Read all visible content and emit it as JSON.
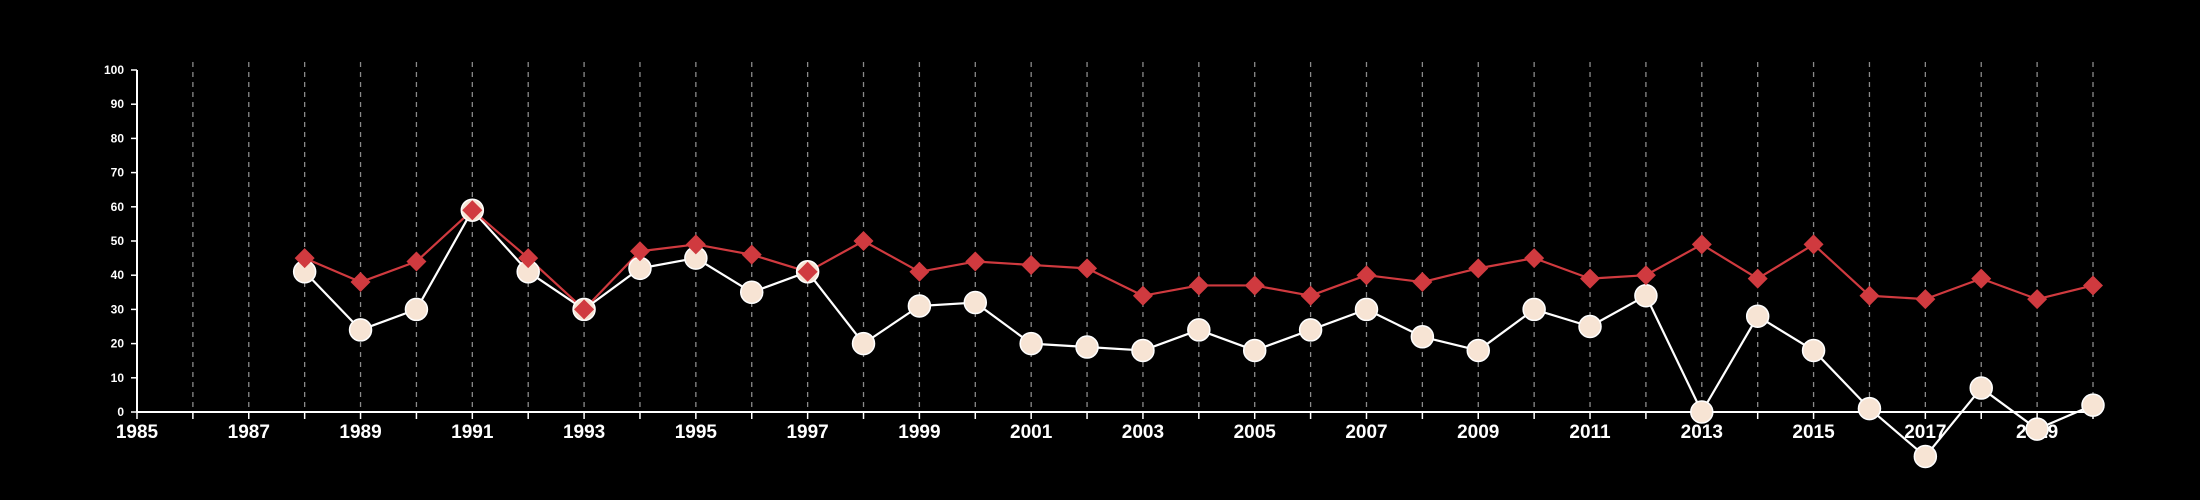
{
  "chart_data": {
    "type": "line",
    "title": "",
    "xlabel": "",
    "ylabel": "",
    "xlim": [
      1985,
      2020
    ],
    "ylim": [
      0,
      100
    ],
    "grid": "vertical dashed",
    "legend": "none",
    "x_ticks": [
      1985,
      1987,
      1989,
      1991,
      1993,
      1995,
      1997,
      1999,
      2001,
      2003,
      2005,
      2007,
      2009,
      2011,
      2013,
      2015,
      2017,
      2019
    ],
    "y_ticks": [
      0,
      10,
      20,
      30,
      40,
      50,
      60,
      70,
      80,
      90,
      100
    ],
    "x": [
      1988,
      1989,
      1990,
      1991,
      1992,
      1993,
      1994,
      1995,
      1996,
      1997,
      1998,
      1999,
      2000,
      2001,
      2002,
      2003,
      2004,
      2005,
      2006,
      2007,
      2008,
      2009,
      2010,
      2011,
      2012,
      2013,
      2014,
      2015,
      2016,
      2017,
      2018,
      2019,
      2020
    ],
    "series": [
      {
        "color": "#d03a3f",
        "marker": "diamond",
        "values": [
          45,
          38,
          44,
          59,
          45,
          30,
          47,
          49,
          46,
          41,
          50,
          41,
          44,
          43,
          42,
          34,
          37,
          37,
          34,
          40,
          38,
          42,
          45,
          39,
          40,
          49,
          39,
          49,
          34,
          33,
          39,
          33,
          37
        ]
      },
      {
        "color": "#f7e4d4",
        "marker": "circle",
        "values": [
          41,
          24,
          30,
          59,
          41,
          30,
          42,
          45,
          35,
          41,
          20,
          31,
          32,
          20,
          19,
          18,
          24,
          18,
          24,
          30,
          22,
          18,
          30,
          25,
          34,
          0,
          28,
          18,
          1,
          -13,
          7,
          -5,
          2
        ]
      }
    ]
  }
}
